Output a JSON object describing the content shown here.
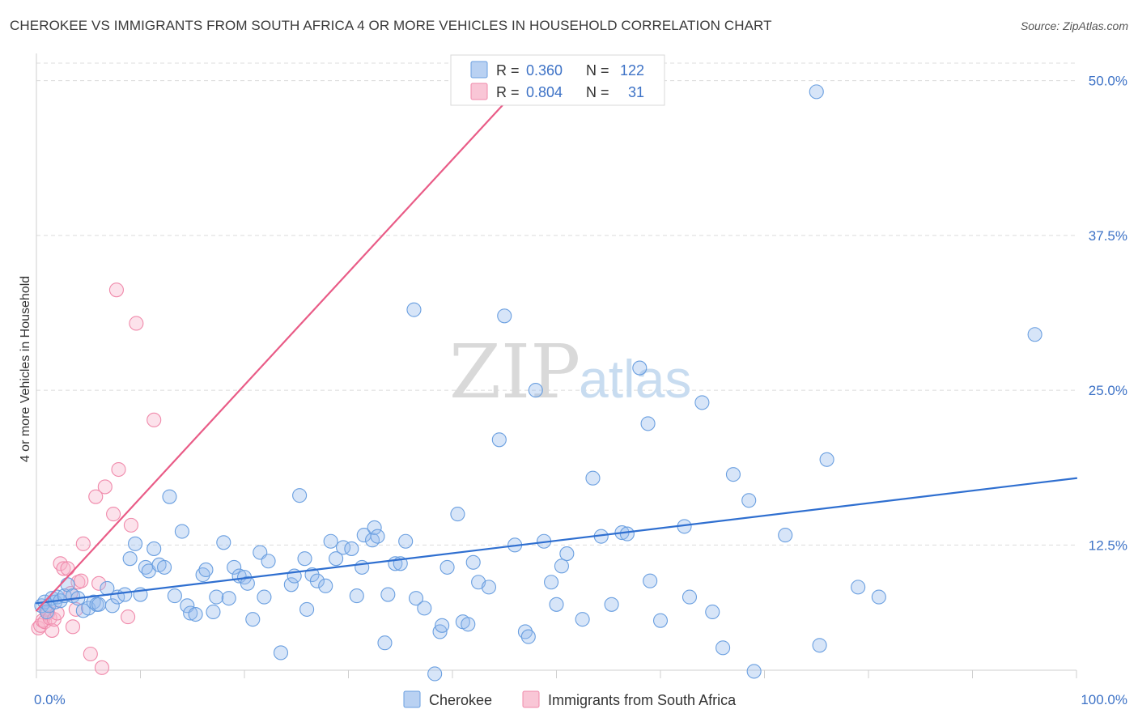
{
  "header": {
    "title": "CHEROKEE VS IMMIGRANTS FROM SOUTH AFRICA 4 OR MORE VEHICLES IN HOUSEHOLD CORRELATION CHART",
    "source": "Source: ZipAtlas.com"
  },
  "watermark": {
    "zip": "ZIP",
    "atlas": "atlas"
  },
  "chart_data": {
    "type": "scatter",
    "title": "CHEROKEE VS IMMIGRANTS FROM SOUTH AFRICA 4 OR MORE VEHICLES IN HOUSEHOLD CORRELATION CHART",
    "xlabel": "",
    "ylabel": "4 or more Vehicles in Household",
    "xlim": [
      0,
      100
    ],
    "ylim": [
      0,
      52
    ],
    "x_tick_labels": [
      "0.0%",
      "100.0%"
    ],
    "y_ticks": [
      12.5,
      25.0,
      37.5,
      50.0
    ],
    "y_tick_labels": [
      "12.5%",
      "25.0%",
      "37.5%",
      "50.0%"
    ],
    "grid": true,
    "legend_position": "top-center",
    "colors": {
      "cherokee": "#6a9fe0",
      "immigrants": "#f08aab",
      "cherokee_line": "#2f6fd0",
      "immigrants_line": "#e95c87",
      "tick_text": "#3d72c6"
    },
    "stats": [
      {
        "series": "Cherokee",
        "r_label": "R = ",
        "r_value": "0.360",
        "n_label": "N = ",
        "n_value": "122"
      },
      {
        "series": "Immigrants from South Africa",
        "r_label": "R = ",
        "r_value": "0.804",
        "n_label": "N = ",
        "n_value": "31"
      }
    ],
    "series": [
      {
        "name": "Cherokee",
        "trend": [
          [
            0,
            7.8
          ],
          [
            100,
            17.9
          ]
        ],
        "points": [
          [
            0.5,
            7.6
          ],
          [
            0.8,
            7.9
          ],
          [
            1.0,
            7.1
          ],
          [
            1.2,
            7.6
          ],
          [
            1.5,
            8.2
          ],
          [
            1.8,
            7.9
          ],
          [
            2.0,
            8.3
          ],
          [
            2.3,
            8.0
          ],
          [
            2.7,
            8.4
          ],
          [
            3.0,
            9.3
          ],
          [
            3.5,
            8.4
          ],
          [
            4.0,
            8.2
          ],
          [
            4.5,
            7.2
          ],
          [
            5.0,
            7.4
          ],
          [
            5.5,
            7.9
          ],
          [
            5.8,
            7.7
          ],
          [
            6.0,
            7.7
          ],
          [
            6.8,
            9.0
          ],
          [
            7.3,
            7.6
          ],
          [
            7.8,
            8.3
          ],
          [
            8.5,
            8.5
          ],
          [
            9.0,
            11.4
          ],
          [
            9.5,
            12.6
          ],
          [
            10.0,
            8.5
          ],
          [
            10.5,
            10.7
          ],
          [
            10.8,
            10.4
          ],
          [
            11.3,
            12.2
          ],
          [
            11.8,
            10.9
          ],
          [
            12.3,
            10.7
          ],
          [
            12.8,
            16.4
          ],
          [
            13.3,
            8.4
          ],
          [
            14.0,
            13.6
          ],
          [
            14.5,
            7.6
          ],
          [
            14.8,
            7.0
          ],
          [
            15.3,
            6.9
          ],
          [
            16.0,
            10.1
          ],
          [
            16.3,
            10.5
          ],
          [
            17.0,
            7.1
          ],
          [
            17.3,
            8.3
          ],
          [
            18.0,
            12.7
          ],
          [
            18.5,
            8.2
          ],
          [
            19.0,
            10.7
          ],
          [
            19.5,
            10.0
          ],
          [
            20.0,
            9.9
          ],
          [
            20.3,
            9.4
          ],
          [
            20.8,
            6.5
          ],
          [
            21.5,
            11.9
          ],
          [
            21.9,
            8.3
          ],
          [
            22.3,
            11.2
          ],
          [
            23.5,
            3.8
          ],
          [
            24.5,
            9.3
          ],
          [
            24.8,
            10.0
          ],
          [
            25.3,
            16.5
          ],
          [
            25.8,
            11.4
          ],
          [
            26.0,
            7.3
          ],
          [
            26.5,
            10.1
          ],
          [
            27.0,
            9.6
          ],
          [
            27.8,
            9.2
          ],
          [
            28.3,
            12.8
          ],
          [
            28.8,
            11.4
          ],
          [
            29.5,
            12.3
          ],
          [
            30.3,
            12.2
          ],
          [
            30.8,
            8.4
          ],
          [
            31.3,
            10.7
          ],
          [
            31.5,
            13.3
          ],
          [
            32.3,
            12.9
          ],
          [
            32.5,
            13.9
          ],
          [
            32.8,
            13.2
          ],
          [
            33.5,
            4.6
          ],
          [
            33.8,
            8.5
          ],
          [
            34.5,
            11.0
          ],
          [
            35.0,
            11.0
          ],
          [
            35.5,
            12.8
          ],
          [
            36.3,
            31.5
          ],
          [
            36.5,
            8.2
          ],
          [
            37.3,
            7.4
          ],
          [
            38.3,
            2.1
          ],
          [
            38.8,
            5.5
          ],
          [
            39.0,
            6.0
          ],
          [
            39.5,
            10.7
          ],
          [
            40.5,
            15.0
          ],
          [
            41.0,
            6.3
          ],
          [
            41.5,
            6.1
          ],
          [
            42.0,
            11.1
          ],
          [
            42.5,
            9.5
          ],
          [
            43.5,
            9.1
          ],
          [
            44.5,
            21.0
          ],
          [
            45.0,
            31.0
          ],
          [
            46.0,
            12.5
          ],
          [
            47.0,
            5.5
          ],
          [
            47.3,
            5.1
          ],
          [
            48.0,
            25.0
          ],
          [
            48.8,
            12.8
          ],
          [
            49.5,
            9.5
          ],
          [
            50.0,
            7.7
          ],
          [
            50.5,
            10.8
          ],
          [
            51.0,
            11.8
          ],
          [
            52.5,
            6.5
          ],
          [
            53.5,
            17.9
          ],
          [
            54.3,
            13.2
          ],
          [
            55.3,
            7.7
          ],
          [
            56.3,
            13.5
          ],
          [
            56.8,
            13.4
          ],
          [
            58.0,
            26.8
          ],
          [
            58.8,
            22.3
          ],
          [
            59.0,
            9.6
          ],
          [
            60.0,
            6.4
          ],
          [
            62.3,
            14.0
          ],
          [
            62.8,
            8.3
          ],
          [
            64.0,
            24.0
          ],
          [
            65.0,
            7.1
          ],
          [
            66.0,
            4.2
          ],
          [
            67.0,
            18.2
          ],
          [
            68.5,
            16.1
          ],
          [
            69.0,
            2.3
          ],
          [
            72.0,
            13.3
          ],
          [
            75.0,
            49.1
          ],
          [
            75.3,
            4.4
          ],
          [
            76.0,
            19.4
          ],
          [
            79.0,
            9.1
          ],
          [
            81.0,
            8.3
          ],
          [
            96.0,
            29.5
          ]
        ]
      },
      {
        "name": "Immigrants from South Africa",
        "trend": [
          [
            0,
            7.2
          ],
          [
            47,
            50
          ]
        ],
        "points": [
          [
            0.2,
            5.8
          ],
          [
            0.4,
            6.0
          ],
          [
            0.6,
            6.4
          ],
          [
            0.8,
            6.3
          ],
          [
            0.9,
            7.3
          ],
          [
            1.1,
            7.0
          ],
          [
            1.3,
            6.6
          ],
          [
            1.5,
            5.6
          ],
          [
            1.7,
            6.5
          ],
          [
            2.0,
            7.0
          ],
          [
            2.3,
            11.0
          ],
          [
            2.6,
            10.6
          ],
          [
            3.0,
            10.6
          ],
          [
            3.3,
            8.6
          ],
          [
            3.5,
            5.9
          ],
          [
            3.8,
            7.3
          ],
          [
            4.0,
            9.5
          ],
          [
            4.3,
            9.6
          ],
          [
            4.5,
            12.6
          ],
          [
            5.2,
            3.7
          ],
          [
            5.7,
            16.4
          ],
          [
            6.0,
            9.4
          ],
          [
            6.3,
            2.6
          ],
          [
            6.6,
            17.2
          ],
          [
            7.4,
            15.0
          ],
          [
            7.7,
            33.1
          ],
          [
            7.9,
            18.6
          ],
          [
            8.8,
            6.7
          ],
          [
            9.1,
            14.1
          ],
          [
            9.6,
            30.4
          ],
          [
            11.3,
            22.6
          ]
        ]
      }
    ]
  },
  "legend": {
    "items": [
      {
        "label": "Cherokee"
      },
      {
        "label": "Immigrants from South Africa"
      }
    ]
  }
}
